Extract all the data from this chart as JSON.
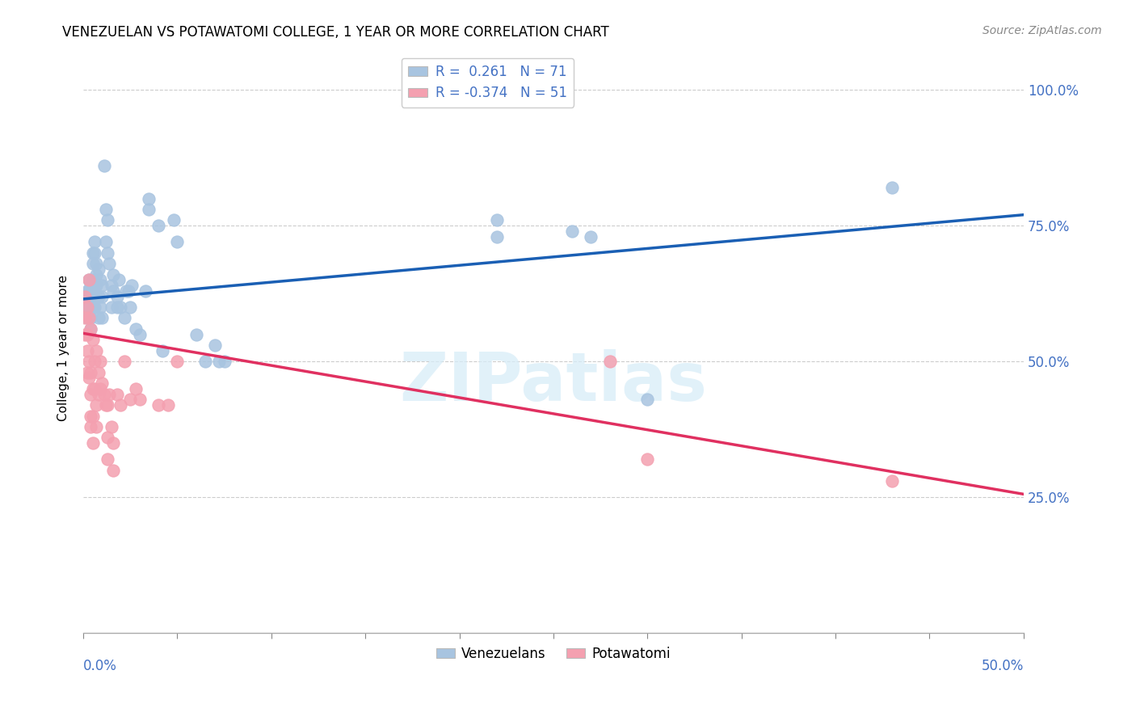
{
  "title": "VENEZUELAN VS POTAWATOMI COLLEGE, 1 YEAR OR MORE CORRELATION CHART",
  "source": "Source: ZipAtlas.com",
  "ylabel": "College, 1 year or more",
  "xmin": 0.0,
  "xmax": 0.5,
  "ymin": 0.0,
  "ymax": 1.05,
  "watermark": "ZIPatlas",
  "legend_r1": "R =  0.261   N = 71",
  "legend_r2": "R = -0.374   N = 51",
  "blue_color": "#a8c4e0",
  "pink_color": "#f4a0b0",
  "blue_line_color": "#1a5fb4",
  "pink_line_color": "#e03060",
  "blue_scatter": [
    [
      0.001,
      0.62
    ],
    [
      0.002,
      0.6
    ],
    [
      0.002,
      0.63
    ],
    [
      0.002,
      0.58
    ],
    [
      0.003,
      0.6
    ],
    [
      0.003,
      0.65
    ],
    [
      0.003,
      0.63
    ],
    [
      0.004,
      0.62
    ],
    [
      0.004,
      0.58
    ],
    [
      0.004,
      0.56
    ],
    [
      0.004,
      0.64
    ],
    [
      0.005,
      0.7
    ],
    [
      0.005,
      0.65
    ],
    [
      0.005,
      0.68
    ],
    [
      0.005,
      0.6
    ],
    [
      0.005,
      0.63
    ],
    [
      0.006,
      0.72
    ],
    [
      0.006,
      0.7
    ],
    [
      0.006,
      0.63
    ],
    [
      0.006,
      0.6
    ],
    [
      0.007,
      0.68
    ],
    [
      0.007,
      0.66
    ],
    [
      0.007,
      0.64
    ],
    [
      0.007,
      0.62
    ],
    [
      0.008,
      0.67
    ],
    [
      0.008,
      0.62
    ],
    [
      0.008,
      0.58
    ],
    [
      0.009,
      0.65
    ],
    [
      0.009,
      0.6
    ],
    [
      0.01,
      0.64
    ],
    [
      0.01,
      0.62
    ],
    [
      0.01,
      0.58
    ],
    [
      0.011,
      0.86
    ],
    [
      0.012,
      0.78
    ],
    [
      0.012,
      0.72
    ],
    [
      0.013,
      0.76
    ],
    [
      0.013,
      0.7
    ],
    [
      0.014,
      0.68
    ],
    [
      0.015,
      0.64
    ],
    [
      0.015,
      0.6
    ],
    [
      0.016,
      0.66
    ],
    [
      0.016,
      0.63
    ],
    [
      0.018,
      0.62
    ],
    [
      0.018,
      0.6
    ],
    [
      0.019,
      0.65
    ],
    [
      0.02,
      0.6
    ],
    [
      0.022,
      0.58
    ],
    [
      0.023,
      0.63
    ],
    [
      0.024,
      0.63
    ],
    [
      0.025,
      0.6
    ],
    [
      0.026,
      0.64
    ],
    [
      0.028,
      0.56
    ],
    [
      0.03,
      0.55
    ],
    [
      0.033,
      0.63
    ],
    [
      0.035,
      0.8
    ],
    [
      0.035,
      0.78
    ],
    [
      0.04,
      0.75
    ],
    [
      0.042,
      0.52
    ],
    [
      0.048,
      0.76
    ],
    [
      0.05,
      0.72
    ],
    [
      0.06,
      0.55
    ],
    [
      0.065,
      0.5
    ],
    [
      0.07,
      0.53
    ],
    [
      0.072,
      0.5
    ],
    [
      0.075,
      0.5
    ],
    [
      0.22,
      0.76
    ],
    [
      0.22,
      0.73
    ],
    [
      0.26,
      0.74
    ],
    [
      0.27,
      0.73
    ],
    [
      0.3,
      0.43
    ],
    [
      0.43,
      0.82
    ]
  ],
  "pink_scatter": [
    [
      0.001,
      0.62
    ],
    [
      0.001,
      0.58
    ],
    [
      0.001,
      0.55
    ],
    [
      0.002,
      0.6
    ],
    [
      0.002,
      0.55
    ],
    [
      0.002,
      0.52
    ],
    [
      0.002,
      0.48
    ],
    [
      0.003,
      0.65
    ],
    [
      0.003,
      0.58
    ],
    [
      0.003,
      0.5
    ],
    [
      0.003,
      0.47
    ],
    [
      0.004,
      0.56
    ],
    [
      0.004,
      0.48
    ],
    [
      0.004,
      0.44
    ],
    [
      0.004,
      0.4
    ],
    [
      0.004,
      0.38
    ],
    [
      0.005,
      0.54
    ],
    [
      0.005,
      0.45
    ],
    [
      0.005,
      0.4
    ],
    [
      0.005,
      0.35
    ],
    [
      0.006,
      0.5
    ],
    [
      0.006,
      0.45
    ],
    [
      0.007,
      0.52
    ],
    [
      0.007,
      0.42
    ],
    [
      0.007,
      0.38
    ],
    [
      0.008,
      0.48
    ],
    [
      0.008,
      0.44
    ],
    [
      0.009,
      0.5
    ],
    [
      0.009,
      0.45
    ],
    [
      0.01,
      0.46
    ],
    [
      0.011,
      0.44
    ],
    [
      0.012,
      0.42
    ],
    [
      0.013,
      0.42
    ],
    [
      0.013,
      0.36
    ],
    [
      0.013,
      0.32
    ],
    [
      0.014,
      0.44
    ],
    [
      0.015,
      0.38
    ],
    [
      0.016,
      0.35
    ],
    [
      0.016,
      0.3
    ],
    [
      0.018,
      0.44
    ],
    [
      0.02,
      0.42
    ],
    [
      0.022,
      0.5
    ],
    [
      0.025,
      0.43
    ],
    [
      0.028,
      0.45
    ],
    [
      0.03,
      0.43
    ],
    [
      0.04,
      0.42
    ],
    [
      0.045,
      0.42
    ],
    [
      0.05,
      0.5
    ],
    [
      0.28,
      0.5
    ],
    [
      0.3,
      0.32
    ],
    [
      0.43,
      0.28
    ]
  ],
  "blue_line_x": [
    0.0,
    0.5
  ],
  "blue_line_y": [
    0.615,
    0.77
  ],
  "pink_line_x": [
    0.0,
    0.5
  ],
  "pink_line_y": [
    0.552,
    0.256
  ],
  "ytick_positions": [
    0.25,
    0.5,
    0.75,
    1.0
  ],
  "ytick_labels": [
    "25.0%",
    "50.0%",
    "75.0%",
    "100.0%"
  ],
  "right_axis_color": "#4472c4",
  "title_fontsize": 12,
  "axis_label_fontsize": 11,
  "tick_fontsize": 12,
  "legend_fontsize": 12
}
